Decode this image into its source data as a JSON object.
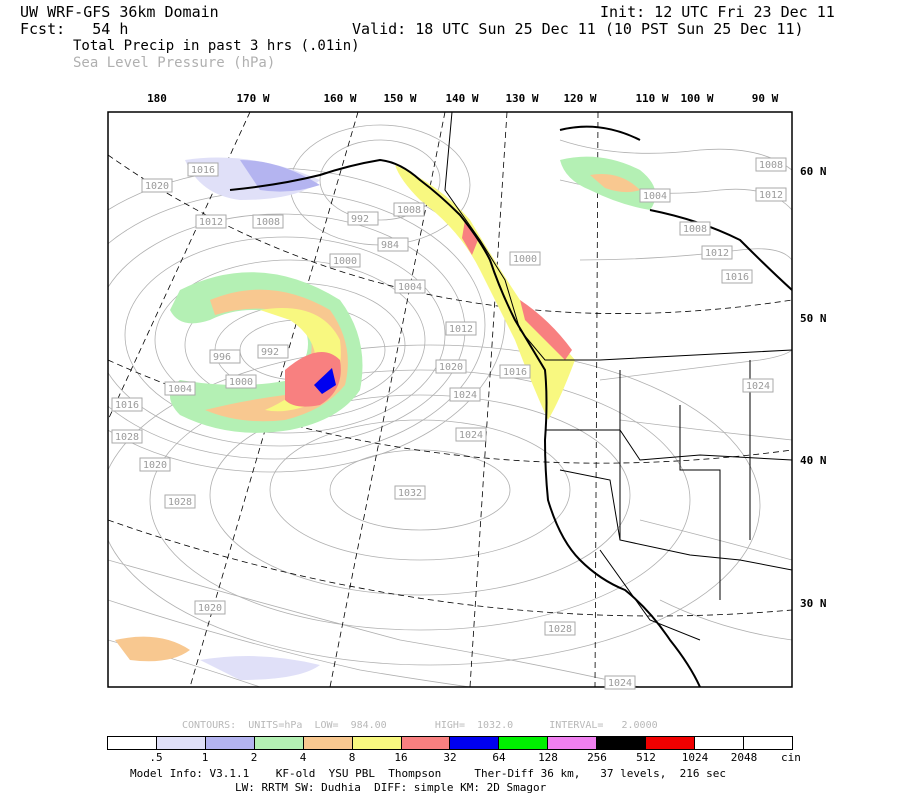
{
  "header": {
    "model": "UW WRF-GFS 36km Domain",
    "init": "Init: 12 UTC Fri 23 Dec 11",
    "fcst": "Fcst:   54 h",
    "valid": "Valid: 18 UTC Sun 25 Dec 11 (10 PST Sun 25 Dec 11)",
    "field1": "Total Precip in past 3 hrs (.01in)",
    "field2": "Sea Level Pressure (hPa)"
  },
  "axes": {
    "longitudes": [
      "180",
      "170 W",
      "160 W",
      "150 W",
      "140 W",
      "130 W",
      "120 W",
      "110 W",
      "100 W",
      "90 W"
    ],
    "latitudes": [
      "60 N",
      "50 N",
      "40 N",
      "30 N"
    ]
  },
  "pressure_labels": [
    "1016",
    "1020",
    "1012",
    "1008",
    "992",
    "984",
    "1000",
    "1008",
    "1000",
    "1004",
    "1012",
    "1020",
    "1024",
    "1016",
    "1028",
    "996",
    "992",
    "1000",
    "1004",
    "1016",
    "1020",
    "1024",
    "1028",
    "1032",
    "1020",
    "1028",
    "1024",
    "1008",
    "1012",
    "1016",
    "1004",
    "1008",
    "1012",
    "1024"
  ],
  "contours": {
    "text": "CONTOURS:  UNITS=hPa  LOW=  984.00        HIGH=  1032.0      INTERVAL=   2.0000",
    "units": "hPa",
    "low": 984.0,
    "high": 1032.0,
    "interval": 2.0
  },
  "legend": {
    "colors": [
      "#ffffff",
      "#e0e0f8",
      "#b4b4f0",
      "#b4f0b4",
      "#f8c890",
      "#f8f880",
      "#f88080",
      "#0000f0",
      "#00f000",
      "#f080f0",
      "#000000",
      "#f00000",
      "#ffffff",
      "#ffffff"
    ],
    "ticks": [
      ".5",
      "1",
      "2",
      "4",
      "8",
      "16",
      "32",
      "64",
      "128",
      "256",
      "512",
      "1024",
      "2048"
    ],
    "unit": "cin"
  },
  "model_info": {
    "line1": "Model Info: V3.1.1    KF-old  YSU PBL  Thompson     Ther-Diff 36 km,   37 levels,  216 sec",
    "line2": "LW: RRTM SW: Dudhia  DIFF: simple KM: 2D Smagor"
  }
}
